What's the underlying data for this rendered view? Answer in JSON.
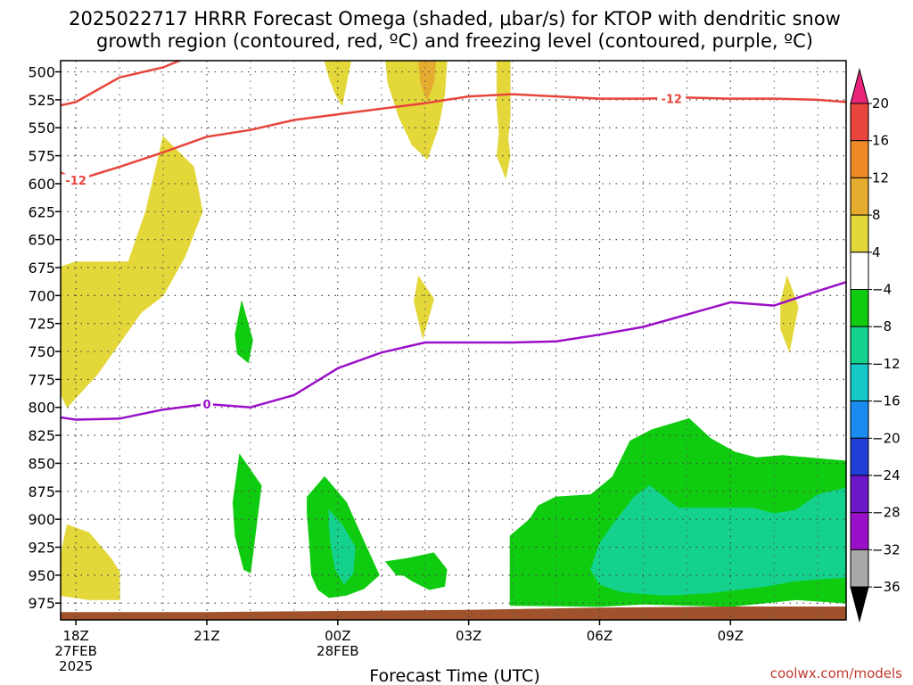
{
  "title_line1": "2025022717 HRRR Forecast Omega (shaded, μbar/s) for KTOP with dendritic snow",
  "title_line2": "growth region (contoured, red, ºC) and freezing level (contoured, purple, ºC)",
  "credit": "coolwx.com/models",
  "chart_data": {
    "type": "contour",
    "xlabel": "Forecast Time (UTC)",
    "ylabel": "",
    "x_range_hours": [
      -0.35,
      17.65
    ],
    "y_range_hpa": [
      490,
      990
    ],
    "y_ticks": [
      500,
      525,
      550,
      575,
      600,
      625,
      650,
      675,
      700,
      725,
      750,
      775,
      800,
      825,
      850,
      875,
      900,
      925,
      950,
      975
    ],
    "x_ticks": [
      {
        "hour": 0,
        "lines": [
          "18Z",
          "27FEB",
          "2025"
        ]
      },
      {
        "hour": 3,
        "lines": [
          "21Z"
        ]
      },
      {
        "hour": 6,
        "lines": [
          "00Z",
          "28FEB"
        ]
      },
      {
        "hour": 9,
        "lines": [
          "03Z"
        ]
      },
      {
        "hour": 12,
        "lines": [
          "06Z"
        ]
      },
      {
        "hour": 15,
        "lines": [
          "09Z"
        ]
      }
    ],
    "grid": true,
    "colorbar": {
      "labels": [
        "20",
        "16",
        "12",
        "8",
        "4",
        "−4",
        "−8",
        "−12",
        "−16",
        "−20",
        "−24",
        "−28",
        "−32",
        "−36"
      ],
      "bins": [
        {
          "color": "#e8257a",
          "from": 24,
          "to": 20
        },
        {
          "color": "#e8453c",
          "from": 20,
          "to": 16
        },
        {
          "color": "#ee8a25",
          "from": 16,
          "to": 12
        },
        {
          "color": "#e6ac30",
          "from": 12,
          "to": 8
        },
        {
          "color": "#e3d73a",
          "from": 8,
          "to": 4
        },
        {
          "color": "#ffffff",
          "from": 4,
          "to": -4
        },
        {
          "color": "#10cc10",
          "from": -4,
          "to": -8
        },
        {
          "color": "#14d28e",
          "from": -8,
          "to": -12
        },
        {
          "color": "#16c8c8",
          "from": -12,
          "to": -16
        },
        {
          "color": "#1a8cf0",
          "from": -16,
          "to": -20
        },
        {
          "color": "#1f3fd6",
          "from": -20,
          "to": -24
        },
        {
          "color": "#6a18c8",
          "from": -24,
          "to": -28
        },
        {
          "color": "#9a10c8",
          "from": -28,
          "to": -32
        },
        {
          "color": "#a8a8a8",
          "from": -32,
          "to": -36
        },
        {
          "color": "#000000",
          "from": -36,
          "to": -40
        }
      ]
    },
    "shaded_regions": [
      {
        "level": "4 to 8",
        "color": "#e3d73a",
        "points": [
          [
            -0.5,
            680
          ],
          [
            -0.5,
            740
          ],
          [
            -0.45,
            780
          ],
          [
            -0.2,
            800
          ],
          [
            0.5,
            770
          ],
          [
            1.5,
            715
          ],
          [
            2.0,
            700
          ],
          [
            2.5,
            665
          ],
          [
            2.9,
            625
          ],
          [
            2.7,
            585
          ],
          [
            2.0,
            558
          ],
          [
            1.6,
            625
          ],
          [
            1.2,
            670
          ],
          [
            0.6,
            670
          ],
          [
            0.0,
            670
          ],
          [
            -0.4,
            675
          ]
        ]
      },
      {
        "level": "4 to 8",
        "color": "#e3d73a",
        "points": [
          [
            -0.4,
            942
          ],
          [
            -0.2,
            905
          ],
          [
            0.3,
            912
          ],
          [
            0.8,
            935
          ],
          [
            1.0,
            947
          ],
          [
            1.0,
            972
          ],
          [
            0.3,
            972
          ],
          [
            -0.4,
            968
          ]
        ]
      },
      {
        "level": "4 to 8",
        "color": "#e3d73a",
        "points": [
          [
            5.7,
            490
          ],
          [
            6.3,
            490
          ],
          [
            6.1,
            530
          ],
          [
            5.95,
            520
          ],
          [
            5.8,
            505
          ]
        ]
      },
      {
        "level": "4 to 8",
        "color": "#e3d73a",
        "points": [
          [
            7.1,
            490
          ],
          [
            8.5,
            490
          ],
          [
            8.45,
            520
          ],
          [
            8.3,
            550
          ],
          [
            8.05,
            578
          ],
          [
            7.7,
            565
          ],
          [
            7.4,
            540
          ],
          [
            7.15,
            510
          ]
        ]
      },
      {
        "level": "4 to 8",
        "color": "#e3d73a",
        "points": [
          [
            9.65,
            490
          ],
          [
            9.95,
            490
          ],
          [
            9.95,
            540
          ],
          [
            9.9,
            560
          ],
          [
            9.95,
            575
          ],
          [
            9.85,
            595
          ],
          [
            9.65,
            575
          ],
          [
            9.7,
            555
          ],
          [
            9.65,
            530
          ]
        ]
      },
      {
        "level": "4 to 8",
        "color": "#e3d73a",
        "points": [
          [
            7.85,
            683
          ],
          [
            8.2,
            703
          ],
          [
            7.95,
            738
          ],
          [
            7.75,
            705
          ]
        ]
      },
      {
        "level": "4 to 8",
        "color": "#e3d73a",
        "points": [
          [
            16.3,
            683
          ],
          [
            16.55,
            710
          ],
          [
            16.35,
            750
          ],
          [
            16.15,
            730
          ],
          [
            16.15,
            705
          ]
        ]
      },
      {
        "level": "8 to 12",
        "color": "#e6ac30",
        "points": [
          [
            7.85,
            490
          ],
          [
            8.25,
            490
          ],
          [
            8.2,
            510
          ],
          [
            8.05,
            525
          ],
          [
            7.9,
            510
          ]
        ]
      },
      {
        "level": "-4 to -8",
        "color": "#10cc10",
        "points": [
          [
            3.8,
            705
          ],
          [
            4.05,
            740
          ],
          [
            3.95,
            760
          ],
          [
            3.7,
            752
          ],
          [
            3.65,
            735
          ]
        ]
      },
      {
        "level": "-4 to -8",
        "color": "#10cc10",
        "points": [
          [
            3.75,
            842
          ],
          [
            4.25,
            870
          ],
          [
            4.0,
            948
          ],
          [
            3.85,
            945
          ],
          [
            3.65,
            915
          ],
          [
            3.6,
            885
          ]
        ]
      },
      {
        "level": "-4 to -8",
        "color": "#10cc10",
        "points": [
          [
            5.3,
            880
          ],
          [
            5.7,
            862
          ],
          [
            6.2,
            885
          ],
          [
            6.6,
            920
          ],
          [
            6.95,
            950
          ],
          [
            6.6,
            962
          ],
          [
            6.2,
            968
          ],
          [
            5.8,
            970
          ],
          [
            5.55,
            963
          ],
          [
            5.4,
            950
          ],
          [
            5.35,
            920
          ],
          [
            5.3,
            895
          ]
        ]
      },
      {
        "level": "-4 to -8",
        "color": "#10cc10",
        "points": [
          [
            7.1,
            938
          ],
          [
            7.6,
            935
          ],
          [
            8.2,
            930
          ],
          [
            8.5,
            945
          ],
          [
            8.45,
            960
          ],
          [
            8.1,
            963
          ],
          [
            7.7,
            955
          ],
          [
            7.5,
            950
          ],
          [
            7.35,
            950
          ]
        ]
      },
      {
        "level": "-4 to -8",
        "color": "#10cc10",
        "points": [
          [
            9.95,
            915
          ],
          [
            10.4,
            900
          ],
          [
            10.6,
            888
          ],
          [
            11.0,
            880
          ],
          [
            11.8,
            878
          ],
          [
            12.3,
            862
          ],
          [
            12.7,
            830
          ],
          [
            13.2,
            820
          ],
          [
            14.05,
            810
          ],
          [
            14.55,
            828
          ],
          [
            15.1,
            840
          ],
          [
            15.6,
            845
          ],
          [
            16.2,
            843
          ],
          [
            17.65,
            848
          ],
          [
            17.65,
            975
          ],
          [
            16.5,
            972
          ],
          [
            15.0,
            978
          ],
          [
            13.0,
            976
          ],
          [
            12.0,
            978
          ],
          [
            9.95,
            977
          ]
        ]
      },
      {
        "level": "-8 to -12",
        "color": "#14d28e",
        "points": [
          [
            11.8,
            945
          ],
          [
            12.0,
            922
          ],
          [
            12.3,
            905
          ],
          [
            12.8,
            880
          ],
          [
            13.15,
            870
          ],
          [
            13.8,
            890
          ],
          [
            15.5,
            890
          ],
          [
            16.0,
            895
          ],
          [
            16.5,
            892
          ],
          [
            17.0,
            878
          ],
          [
            17.65,
            872
          ],
          [
            17.65,
            952
          ],
          [
            17.2,
            953
          ],
          [
            16.5,
            955
          ],
          [
            15.8,
            960
          ],
          [
            14.5,
            966
          ],
          [
            13.5,
            968
          ],
          [
            12.5,
            965
          ],
          [
            12.0,
            958
          ]
        ]
      },
      {
        "level": "-8 to -12",
        "color": "#14d28e",
        "points": [
          [
            5.8,
            892
          ],
          [
            6.1,
            905
          ],
          [
            6.4,
            925
          ],
          [
            6.35,
            948
          ],
          [
            6.15,
            958
          ],
          [
            5.95,
            945
          ],
          [
            5.85,
            925
          ],
          [
            5.8,
            905
          ]
        ]
      }
    ],
    "contours": [
      {
        "name": "-12",
        "color": "#e8453c",
        "points": [
          [
            -0.35,
            530
          ],
          [
            0.0,
            527
          ],
          [
            1.0,
            505
          ],
          [
            2.0,
            496
          ],
          [
            3.0,
            480
          ],
          [
            4.0,
            478
          ],
          [
            5.0,
            478
          ]
        ]
      },
      {
        "name": "-12",
        "color": "#e8453c",
        "label_at_hour": 0.0,
        "points": [
          [
            -0.35,
            590
          ],
          [
            0.0,
            597
          ],
          [
            1.0,
            585
          ],
          [
            2.0,
            572
          ],
          [
            3.0,
            558
          ],
          [
            4.0,
            552
          ],
          [
            5.0,
            543
          ],
          [
            6.0,
            538
          ],
          [
            7.0,
            533
          ],
          [
            8.0,
            528
          ],
          [
            9.0,
            522
          ],
          [
            10.0,
            520
          ],
          [
            11.0,
            522
          ],
          [
            12.0,
            524
          ],
          [
            13.0,
            524
          ],
          [
            14.0,
            523
          ],
          [
            15.0,
            524
          ],
          [
            16.0,
            524
          ],
          [
            17.0,
            525
          ],
          [
            17.65,
            527
          ]
        ]
      },
      {
        "name": "0",
        "color": "#9a10c8",
        "label_at_hour": 3.0,
        "points": [
          [
            -0.35,
            809
          ],
          [
            0.0,
            811
          ],
          [
            1.0,
            810
          ],
          [
            2.0,
            802
          ],
          [
            3.0,
            797
          ],
          [
            4.0,
            800
          ],
          [
            5.0,
            789
          ],
          [
            6.0,
            765
          ],
          [
            7.0,
            751
          ],
          [
            8.0,
            742
          ],
          [
            9.0,
            742
          ],
          [
            10.0,
            742
          ],
          [
            11.0,
            741
          ],
          [
            12.0,
            735
          ],
          [
            13.0,
            728
          ],
          [
            14.0,
            717
          ],
          [
            15.0,
            706
          ],
          [
            16.0,
            709
          ],
          [
            17.0,
            696
          ],
          [
            17.65,
            688
          ]
        ]
      }
    ],
    "ground_layer": {
      "color": "#a0522d",
      "points": [
        [
          -0.35,
          990
        ],
        [
          -0.35,
          983
        ],
        [
          3.0,
          983
        ],
        [
          6.0,
          982
        ],
        [
          9.0,
          981
        ],
        [
          12.0,
          979
        ],
        [
          15.0,
          978
        ],
        [
          17.65,
          978
        ],
        [
          17.65,
          990
        ]
      ]
    }
  }
}
